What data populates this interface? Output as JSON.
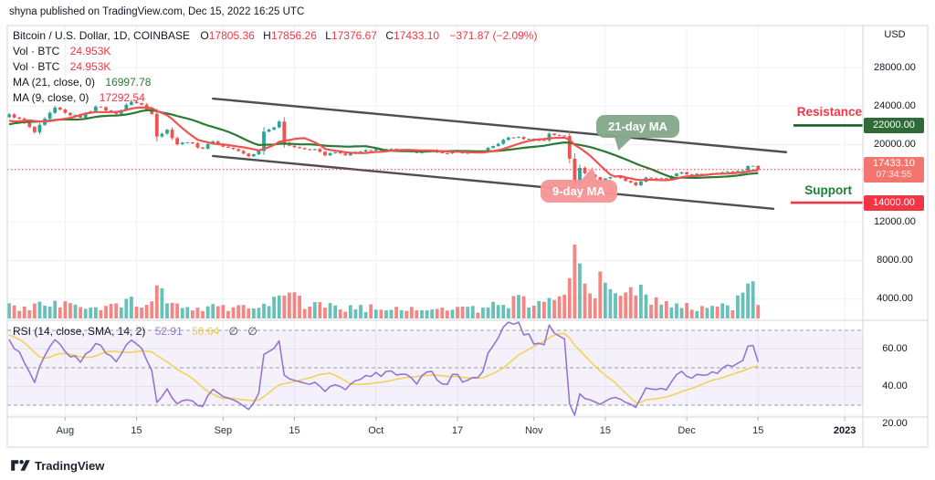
{
  "header": {
    "published_line": "shyna published on TradingView.com, Dec 15, 2022 16:25 UTC"
  },
  "legend": {
    "symbol": "Bitcoin / U.S. Dollar, 1D, COINBASE",
    "o_label": "O",
    "o_value": "17805.36",
    "h_label": "H",
    "h_value": "17856.26",
    "l_label": "L",
    "l_value": "17376.67",
    "c_label": "C",
    "c_value": "17433.10",
    "change_value": "−371.87 (−2.09%)",
    "vol_rows": [
      {
        "label": "Vol · BTC",
        "value": "24.953K"
      },
      {
        "label": "Vol · BTC",
        "value": "24.953K"
      }
    ],
    "ma21_label": "MA (21, close, 0)",
    "ma21_value": "16997.78",
    "ma9_label": "MA (9, close, 0)",
    "ma9_value": "17292.54"
  },
  "rsi_legend": {
    "label": "RSI (14, close, SMA, 14, 2)",
    "value": "52.91",
    "sma_value": "50.64",
    "empty1": "∅",
    "empty2": "∅"
  },
  "axis": {
    "currency": "USD",
    "price_labels": [
      {
        "text": "28000.00",
        "value": 28000
      },
      {
        "text": "24000.00",
        "value": 24000
      },
      {
        "text": "20000.00",
        "value": 20000
      },
      {
        "text": "12000.00",
        "value": 12000
      },
      {
        "text": "8000.00",
        "value": 8000
      },
      {
        "text": "4000.00",
        "value": 4000
      }
    ],
    "rsi_labels": [
      {
        "text": "60.00",
        "value": 60
      },
      {
        "text": "40.00",
        "value": 40
      },
      {
        "text": "20.00",
        "value": 20
      }
    ],
    "badges": {
      "resistance": "22000.00",
      "last_price": "17433.10",
      "countdown": "07:34:55",
      "support": "14000.00"
    }
  },
  "annotations": {
    "resistance_label": "Resistance",
    "support_label": "Support",
    "ma21_callout": "21-day MA",
    "ma9_callout": "9-day MA"
  },
  "time_ticks": [
    {
      "label": "Aug",
      "day": 11
    },
    {
      "label": "15",
      "day": 25
    },
    {
      "label": "Sep",
      "day": 42
    },
    {
      "label": "15",
      "day": 56
    },
    {
      "label": "Oct",
      "day": 72
    },
    {
      "label": "17",
      "day": 88
    },
    {
      "label": "Nov",
      "day": 103
    },
    {
      "label": "15",
      "day": 117
    },
    {
      "label": "Dec",
      "day": 133
    },
    {
      "label": "15",
      "day": 147
    },
    {
      "label": "2023",
      "day": 164,
      "bold": true
    }
  ],
  "footer": {
    "brand": "TradingView"
  },
  "colors": {
    "up": "#26a69a",
    "down": "#ef5350",
    "vol_up": "rgba(38,166,154,0.7)",
    "vol_down": "rgba(239,83,80,0.7)",
    "ma_slow": "#2b7a34",
    "ma_fast": "#ef5350",
    "rsi": "#9775cf",
    "rsi_sma": "#f0d25c",
    "band_fill": "rgba(150,120,210,0.10)",
    "band_dash": "#9b9ea8",
    "resistance_line": "#1b5e20",
    "support_line": "#f23645",
    "last_price_line": "#f23645",
    "channel": "#4f4f4f",
    "grid": "#eef0f6",
    "border": "#d1d4dc"
  },
  "chart_data": {
    "type": "candlestick",
    "symbol": "Bitcoin / U.S. Dollar",
    "exchange": "COINBASE",
    "interval": "1D",
    "visible_range": {
      "start": "2022-07-21",
      "end": "2022-12-15",
      "days": 148
    },
    "last_bar": {
      "open": 17805.36,
      "high": 17856.26,
      "low": 17376.67,
      "close": 17433.1,
      "change": -371.87,
      "change_pct": -2.09,
      "volume": "24.953K",
      "bar_countdown": "07:34:55"
    },
    "indicators": {
      "ma_slow": {
        "length": 21,
        "source": "close",
        "offset": 0,
        "last": 16997.78
      },
      "ma_fast": {
        "length": 9,
        "source": "close",
        "offset": 0,
        "last": 17292.54
      },
      "rsi": {
        "length": 14,
        "source": "close",
        "smoothing": "SMA",
        "smoothing_length": 14,
        "last": 52.91,
        "sma_last": 50.64,
        "band": [
          30,
          70
        ],
        "mid": 50,
        "axis_ticks": [
          60,
          40,
          20
        ]
      }
    },
    "key_levels": {
      "resistance": 22000,
      "support": 14000,
      "last_price": 17433.1
    },
    "channel": {
      "upper": {
        "from": [
          40,
          24780
        ],
        "to": [
          152.5,
          19230
        ]
      },
      "lower": {
        "from": [
          40,
          18830
        ],
        "to": [
          150,
          13360
        ]
      }
    },
    "price_ticks": [
      28000,
      24000,
      20000,
      12000,
      8000,
      4000
    ],
    "rsi_ticks": [
      60,
      40,
      20
    ],
    "price_anchors": [
      [
        -34,
        20400
      ],
      [
        -30,
        20900
      ],
      [
        -26,
        19800
      ],
      [
        -21,
        20750
      ],
      [
        -16,
        21300
      ],
      [
        -12,
        22500
      ],
      [
        -8,
        23300
      ],
      [
        -5,
        21350
      ],
      [
        -3,
        22450
      ],
      [
        0,
        23150
      ],
      [
        2,
        22700
      ],
      [
        5,
        21300
      ],
      [
        9,
        23850
      ],
      [
        11,
        23300
      ],
      [
        14,
        22800
      ],
      [
        17,
        23950
      ],
      [
        19,
        23550
      ],
      [
        21,
        23200
      ],
      [
        24,
        24450
      ],
      [
        26,
        24150
      ],
      [
        28,
        23200
      ],
      [
        29,
        20850
      ],
      [
        31,
        21550
      ],
      [
        33,
        20050
      ],
      [
        35,
        20250
      ],
      [
        38,
        19600
      ],
      [
        40,
        20350
      ],
      [
        42,
        19800
      ],
      [
        44,
        19550
      ],
      [
        47,
        18800
      ],
      [
        49,
        19350
      ],
      [
        50,
        21350
      ],
      [
        52,
        21800
      ],
      [
        53,
        22400
      ],
      [
        54,
        20200
      ],
      [
        56,
        19750
      ],
      [
        57,
        19650
      ],
      [
        59,
        19450
      ],
      [
        60,
        19550
      ],
      [
        62,
        18900
      ],
      [
        64,
        19200
      ],
      [
        66,
        18900
      ],
      [
        68,
        19250
      ],
      [
        71,
        19400
      ],
      [
        74,
        19550
      ],
      [
        77,
        19450
      ],
      [
        80,
        19150
      ],
      [
        83,
        19450
      ],
      [
        86,
        19100
      ],
      [
        88,
        19300
      ],
      [
        90,
        19150
      ],
      [
        93,
        19300
      ],
      [
        96,
        20100
      ],
      [
        98,
        20750
      ],
      [
        100,
        20800
      ],
      [
        103,
        20450
      ],
      [
        105,
        20450
      ],
      [
        106,
        21150
      ],
      [
        108,
        20950
      ],
      [
        109,
        20900
      ],
      [
        110,
        18550
      ],
      [
        111,
        15880
      ],
      [
        112,
        17600
      ],
      [
        113,
        17050
      ],
      [
        114,
        16900
      ],
      [
        116,
        16350
      ],
      [
        118,
        16650
      ],
      [
        119,
        16700
      ],
      [
        121,
        16250
      ],
      [
        123,
        15800
      ],
      [
        125,
        16600
      ],
      [
        127,
        16500
      ],
      [
        129,
        16450
      ],
      [
        132,
        17150
      ],
      [
        134,
        16850
      ],
      [
        136,
        16950
      ],
      [
        138,
        17050
      ],
      [
        140,
        17150
      ],
      [
        142,
        17200
      ],
      [
        144,
        17350
      ],
      [
        145,
        17780
      ],
      [
        146,
        17805
      ],
      [
        147,
        17433.1
      ]
    ],
    "volume_anchors_k": [
      [
        -34,
        16
      ],
      [
        0,
        17
      ],
      [
        8,
        20
      ],
      [
        15,
        18
      ],
      [
        24,
        24
      ],
      [
        28,
        26
      ],
      [
        29,
        38
      ],
      [
        33,
        22
      ],
      [
        38,
        15
      ],
      [
        42,
        16
      ],
      [
        47,
        22
      ],
      [
        50,
        28
      ],
      [
        53,
        26
      ],
      [
        54,
        40
      ],
      [
        58,
        22
      ],
      [
        62,
        18
      ],
      [
        66,
        14
      ],
      [
        71,
        15
      ],
      [
        76,
        13
      ],
      [
        80,
        13
      ],
      [
        85,
        14
      ],
      [
        88,
        15
      ],
      [
        92,
        14
      ],
      [
        96,
        22
      ],
      [
        100,
        26
      ],
      [
        103,
        20
      ],
      [
        106,
        24
      ],
      [
        109,
        26
      ],
      [
        110,
        60
      ],
      [
        111,
        110
      ],
      [
        112,
        82
      ],
      [
        113,
        52
      ],
      [
        114,
        42
      ],
      [
        115,
        36
      ],
      [
        116,
        70
      ],
      [
        117,
        44
      ],
      [
        119,
        32
      ],
      [
        121,
        30
      ],
      [
        123,
        44
      ],
      [
        125,
        30
      ],
      [
        128,
        24
      ],
      [
        130,
        20
      ],
      [
        132,
        22
      ],
      [
        134,
        18
      ],
      [
        136,
        17
      ],
      [
        138,
        16
      ],
      [
        140,
        18
      ],
      [
        142,
        20
      ],
      [
        144,
        30
      ],
      [
        145,
        52
      ],
      [
        146,
        40
      ],
      [
        147,
        25
      ]
    ]
  }
}
